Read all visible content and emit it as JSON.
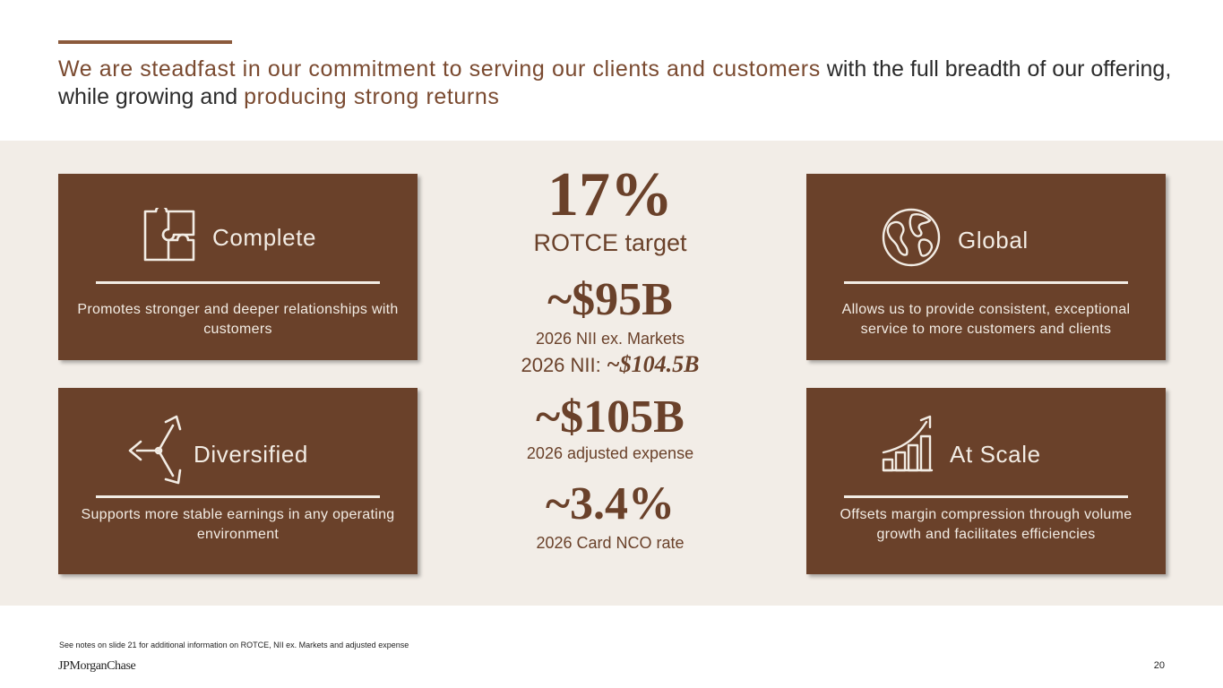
{
  "header": {
    "headline_part1": "We are steadfast in our commitment to serving our clients and customers",
    "headline_part2": " with the full breadth of our offering, while growing and ",
    "headline_part3": "producing strong returns"
  },
  "cards": {
    "complete": {
      "title": "Complete",
      "description": "Promotes stronger and deeper relationships with customers",
      "icon": "puzzle-icon"
    },
    "global": {
      "title": "Global",
      "description": "Allows us to provide consistent, exceptional service to more customers and clients",
      "icon": "globe-icon"
    },
    "diversified": {
      "title": "Diversified",
      "description": "Supports more stable earnings in any operating environment",
      "icon": "diverging-arrows-icon"
    },
    "at_scale": {
      "title": "At Scale",
      "description": "Offsets margin compression through volume growth and facilitates efficiencies",
      "icon": "growth-chart-icon"
    }
  },
  "metrics": {
    "rotce_value": "17%",
    "rotce_label": "ROTCE target",
    "nii_ex_value": "~$95B",
    "nii_ex_label": "2026 NII ex. Markets",
    "nii_label": "2026 NII: ",
    "nii_value": "~$104.5B",
    "expense_value": "~$105B",
    "expense_label": "2026 adjusted expense",
    "nco_value": "~3.4%",
    "nco_label": "2026 Card NCO rate"
  },
  "footer": {
    "footnote": "See notes on slide 21 for additional information on ROTCE, NII ex. Markets and adjusted expense",
    "logo": "JPMorganChase",
    "page_number": "20"
  },
  "colors": {
    "brown": "#6a412a",
    "accent": "#8b5a3c",
    "band": "#f2ede7",
    "card_text": "#f2ece4"
  }
}
